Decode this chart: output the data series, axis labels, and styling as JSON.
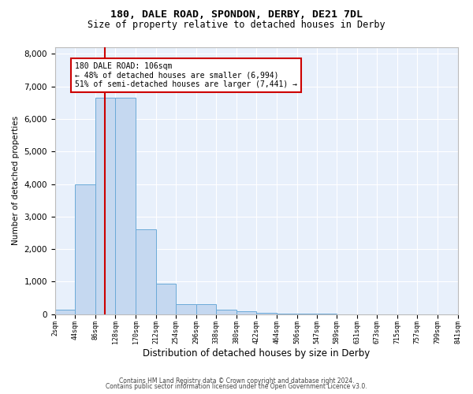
{
  "title_line1": "180, DALE ROAD, SPONDON, DERBY, DE21 7DL",
  "title_line2": "Size of property relative to detached houses in Derby",
  "xlabel": "Distribution of detached houses by size in Derby",
  "ylabel": "Number of detached properties",
  "bar_color": "#c5d8f0",
  "bar_edge_color": "#6baad8",
  "background_color": "#e8f0fb",
  "bin_edges": [
    2,
    44,
    86,
    128,
    170,
    212,
    254,
    296,
    338,
    380,
    422,
    464,
    506,
    547,
    589,
    631,
    673,
    715,
    757,
    799,
    841
  ],
  "bar_heights": [
    130,
    4000,
    6650,
    6650,
    2600,
    950,
    320,
    320,
    130,
    90,
    50,
    25,
    12,
    8,
    4,
    2,
    1,
    1,
    1,
    0
  ],
  "tick_labels": [
    "2sqm",
    "44sqm",
    "86sqm",
    "128sqm",
    "170sqm",
    "212sqm",
    "254sqm",
    "296sqm",
    "338sqm",
    "380sqm",
    "422sqm",
    "464sqm",
    "506sqm",
    "547sqm",
    "589sqm",
    "631sqm",
    "673sqm",
    "715sqm",
    "757sqm",
    "799sqm",
    "841sqm"
  ],
  "ylim": [
    0,
    8200
  ],
  "yticks": [
    0,
    1000,
    2000,
    3000,
    4000,
    5000,
    6000,
    7000,
    8000
  ],
  "vline_x": 106,
  "vline_color": "#cc0000",
  "annotation_text": "180 DALE ROAD: 106sqm\n← 48% of detached houses are smaller (6,994)\n51% of semi-detached houses are larger (7,441) →",
  "annotation_box_color": "#ffffff",
  "annotation_box_edge": "#cc0000",
  "footer_line1": "Contains HM Land Registry data © Crown copyright and database right 2024.",
  "footer_line2": "Contains public sector information licensed under the Open Government Licence v3.0.",
  "grid_color": "#ffffff",
  "fig_bg": "#ffffff",
  "title1_fontsize": 9.5,
  "title2_fontsize": 8.5,
  "ylabel_fontsize": 7.5,
  "xlabel_fontsize": 8.5,
  "ytick_fontsize": 7.5,
  "xtick_fontsize": 6.0,
  "annot_fontsize": 7.0,
  "footer_fontsize": 5.5
}
